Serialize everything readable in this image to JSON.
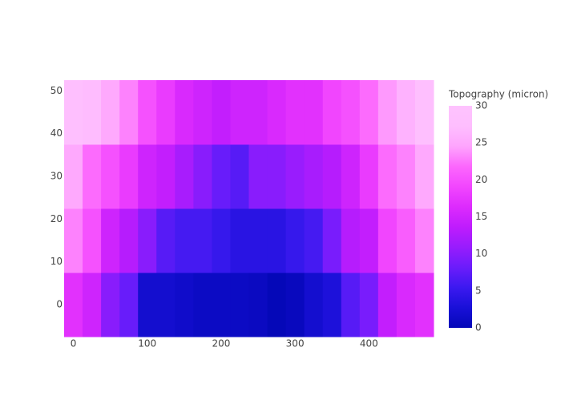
{
  "chart_data": {
    "type": "heatmap",
    "colorbar_title": "Topography (micron)",
    "x": [
      0,
      25,
      50,
      75,
      100,
      125,
      150,
      175,
      200,
      225,
      250,
      275,
      300,
      325,
      350,
      375,
      400,
      425,
      450,
      475
    ],
    "y": [
      0,
      15,
      30,
      45
    ],
    "z": [
      [
        17,
        15,
        10,
        8,
        2,
        2,
        1.5,
        1,
        1,
        1,
        0.8,
        0,
        0.5,
        2,
        3,
        7,
        9,
        14,
        16,
        17
      ],
      [
        23,
        20,
        15,
        13,
        10,
        7,
        6,
        6,
        5,
        4,
        4,
        4,
        5,
        6,
        9,
        13,
        14,
        19,
        21,
        23
      ],
      [
        25,
        22,
        20,
        18,
        15,
        14,
        12,
        10,
        8,
        7,
        10,
        10,
        11,
        12,
        13,
        15,
        18,
        22,
        23,
        25
      ],
      [
        28,
        27,
        25,
        23,
        20,
        18,
        16,
        15,
        14,
        15,
        15,
        16,
        17,
        17,
        19,
        20,
        22,
        24,
        26,
        28
      ]
    ],
    "xlim": [
      -12.5,
      487.5
    ],
    "ylim": [
      -7.5,
      52.5
    ],
    "xticks": [
      0,
      100,
      200,
      300,
      400
    ],
    "yticks": [
      0,
      10,
      20,
      30,
      40,
      50
    ],
    "zlim": [
      0,
      30
    ],
    "zticks": [
      0,
      5,
      10,
      15,
      20,
      25,
      30
    ],
    "colorscale": [
      "#0508b8",
      "#1910d8",
      "#3c19f0",
      "#6b1cfb",
      "#981cfd",
      "#bf1cfd",
      "#dd2bfd",
      "#f246fe",
      "#fc67fd",
      "#fea5fd",
      "#febefe",
      "#fec3fe"
    ]
  }
}
